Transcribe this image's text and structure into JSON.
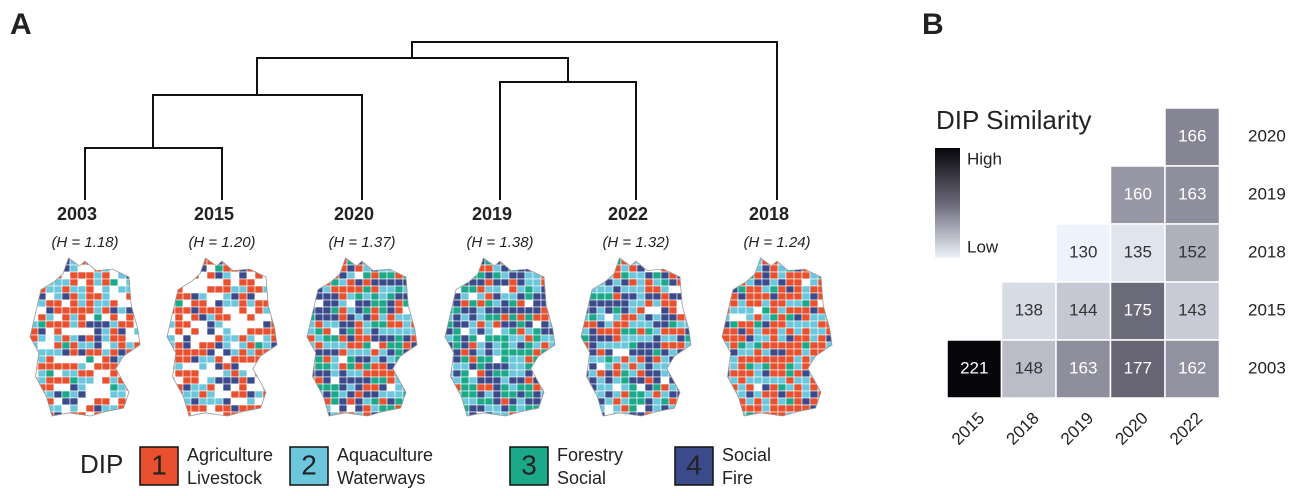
{
  "panel_a": {
    "label": "A",
    "leaves": [
      {
        "year": "2003",
        "h_label": "(H = 1.18)"
      },
      {
        "year": "2015",
        "h_label": "(H = 1.20)"
      },
      {
        "year": "2020",
        "h_label": "(H = 1.37)"
      },
      {
        "year": "2019",
        "h_label": "(H = 1.38)"
      },
      {
        "year": "2022",
        "h_label": "(H = 1.32)"
      },
      {
        "year": "2018",
        "h_label": "(H = 1.24)"
      }
    ],
    "legend": {
      "title": "DIP",
      "items": [
        {
          "number": "1",
          "lines": [
            "Agriculture",
            "Livestock"
          ],
          "color": "#e8502f"
        },
        {
          "number": "2",
          "lines": [
            "Aquaculture",
            "Waterways"
          ],
          "color": "#6cc6dc"
        },
        {
          "number": "3",
          "lines": [
            "Forestry",
            "Social"
          ],
          "color": "#1ba98a"
        },
        {
          "number": "4",
          "lines": [
            "Social",
            "Fire"
          ],
          "color": "#3a4a8a"
        }
      ]
    }
  },
  "panel_b": {
    "label": "B",
    "title": "DIP Similarity",
    "legend_high": "High",
    "legend_low": "Low",
    "columns": [
      "2015",
      "2018",
      "2019",
      "2020",
      "2022"
    ],
    "rows": [
      {
        "label": "2020",
        "values": [
          null,
          null,
          null,
          null,
          166
        ]
      },
      {
        "label": "2019",
        "values": [
          null,
          null,
          null,
          160,
          163
        ]
      },
      {
        "label": "2018",
        "values": [
          null,
          null,
          130,
          135,
          152
        ]
      },
      {
        "label": "2015",
        "values": [
          null,
          138,
          144,
          175,
          143
        ]
      },
      {
        "label": "2003",
        "values": [
          221,
          148,
          163,
          177,
          162
        ]
      }
    ]
  }
}
